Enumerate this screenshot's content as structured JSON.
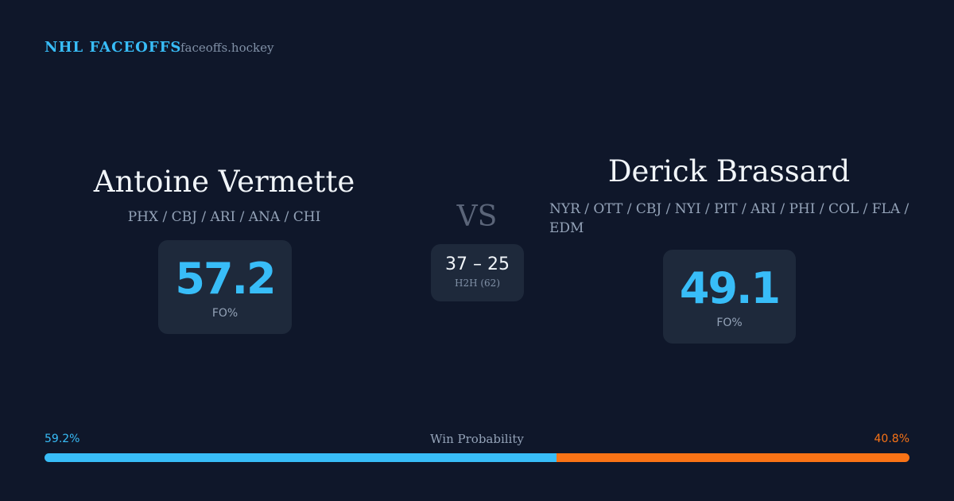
{
  "header": {
    "brand": "NHL FACEOFFS",
    "site": "faceoffs.hockey"
  },
  "left_player": {
    "name": "Antoine Vermette",
    "teams": "PHX / CBJ / ARI / ANA / CHI",
    "stat": "57.2",
    "stat_label": "FO%"
  },
  "versus": {
    "label": "VS",
    "record": "37 – 25",
    "record_label": "H2H (62)"
  },
  "right_player": {
    "name": "Derick Brassard",
    "teams": "NYR / OTT / CBJ / NYI / PIT / ARI / PHI / COL / FLA / EDM",
    "stat": "49.1",
    "stat_label": "FO%"
  },
  "win_probability": {
    "title": "Win Probability",
    "left": {
      "value": 59.2,
      "label": "59.2%",
      "color": "#38bdf8"
    },
    "right": {
      "value": 40.8,
      "label": "40.8%",
      "color": "#f97316"
    }
  }
}
